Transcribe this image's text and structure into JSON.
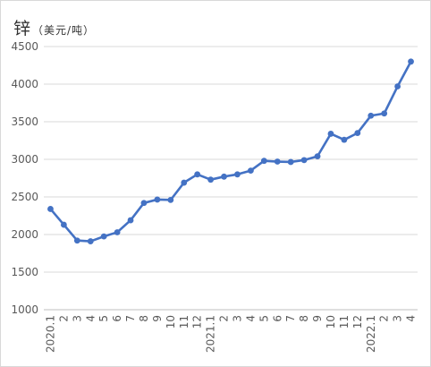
{
  "chart_data": {
    "type": "line",
    "title": "锌",
    "unit": "（美元/吨）",
    "categories": [
      "2020.1",
      "2",
      "3",
      "4",
      "5",
      "6",
      "7",
      "8",
      "9",
      "10",
      "11",
      "12",
      "2021.1",
      "2",
      "3",
      "4",
      "5",
      "6",
      "7",
      "8",
      "9",
      "10",
      "11",
      "12",
      "2022.1",
      "2",
      "3",
      "4"
    ],
    "series": [
      {
        "values": [
          2340,
          2130,
          1920,
          1910,
          1975,
          2030,
          2190,
          2420,
          2465,
          2460,
          2690,
          2800,
          2730,
          2770,
          2800,
          2850,
          2980,
          2970,
          2965,
          2990,
          3040,
          3340,
          3260,
          3350,
          3580,
          3610,
          3970,
          4300
        ]
      }
    ],
    "yticks": [
      1000,
      1500,
      2000,
      2500,
      3000,
      3500,
      4000,
      4500
    ],
    "ylim": [
      1000,
      4500
    ],
    "grid": true,
    "color": "#4472c4"
  }
}
